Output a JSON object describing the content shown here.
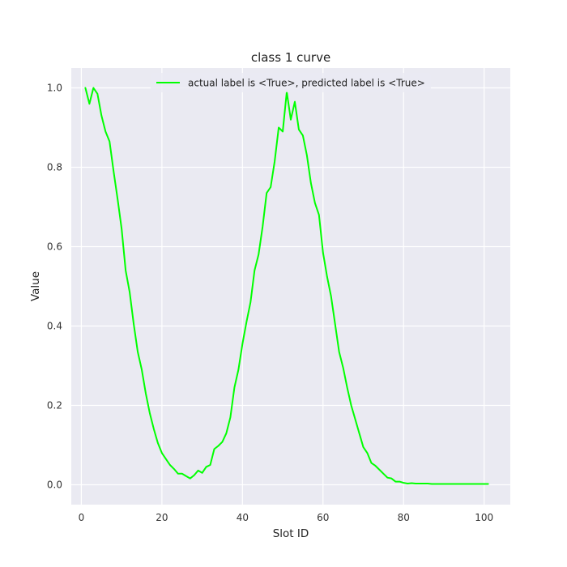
{
  "chart_data": {
    "type": "line",
    "title": "class 1 curve",
    "xlabel": "Slot ID",
    "ylabel": "Value",
    "xlim": [
      -2.5,
      106.5
    ],
    "ylim": [
      -0.05,
      1.05
    ],
    "xticks": [
      0,
      20,
      40,
      60,
      80,
      100
    ],
    "yticks": [
      0.0,
      0.2,
      0.4,
      0.6,
      0.8,
      1.0
    ],
    "xtick_labels": [
      "0",
      "20",
      "40",
      "60",
      "80",
      "100"
    ],
    "ytick_labels": [
      "0.0",
      "0.2",
      "0.4",
      "0.6",
      "0.8",
      "1.0"
    ],
    "grid": true,
    "background": "#eaeaf2",
    "legend_position": "top-center",
    "series": [
      {
        "name": "actual label is <True>, predicted label is <True>",
        "color": "#00ff00",
        "x": [
          1,
          2,
          3,
          4,
          5,
          6,
          7,
          8,
          9,
          10,
          11,
          12,
          13,
          14,
          15,
          16,
          17,
          18,
          19,
          20,
          21,
          22,
          23,
          24,
          25,
          26,
          27,
          28,
          29,
          30,
          31,
          32,
          33,
          34,
          35,
          36,
          37,
          38,
          39,
          40,
          41,
          42,
          43,
          44,
          45,
          46,
          47,
          48,
          49,
          50,
          51,
          52,
          53,
          54,
          55,
          56,
          57,
          58,
          59,
          60,
          61,
          62,
          63,
          64,
          65,
          66,
          67,
          68,
          69,
          70,
          71,
          72,
          73,
          74,
          75,
          76,
          77,
          78,
          79,
          80,
          81,
          82,
          83,
          84,
          85,
          86,
          87,
          88,
          89,
          90,
          91,
          92,
          93,
          94,
          95,
          96,
          97,
          98,
          99,
          100,
          101
        ],
        "values": [
          1.0,
          0.96,
          1.0,
          0.985,
          0.93,
          0.89,
          0.865,
          0.79,
          0.72,
          0.645,
          0.54,
          0.485,
          0.405,
          0.335,
          0.29,
          0.23,
          0.18,
          0.14,
          0.105,
          0.08,
          0.065,
          0.05,
          0.04,
          0.028,
          0.028,
          0.022,
          0.016,
          0.024,
          0.036,
          0.03,
          0.045,
          0.05,
          0.09,
          0.098,
          0.108,
          0.13,
          0.17,
          0.245,
          0.29,
          0.355,
          0.41,
          0.46,
          0.54,
          0.58,
          0.65,
          0.735,
          0.75,
          0.815,
          0.9,
          0.89,
          0.99,
          0.92,
          0.965,
          0.895,
          0.88,
          0.83,
          0.76,
          0.71,
          0.68,
          0.585,
          0.525,
          0.475,
          0.405,
          0.335,
          0.295,
          0.245,
          0.2,
          0.165,
          0.13,
          0.095,
          0.08,
          0.055,
          0.048,
          0.038,
          0.028,
          0.018,
          0.016,
          0.008,
          0.008,
          0.005,
          0.003,
          0.004,
          0.003,
          0.003,
          0.003,
          0.003,
          0.002,
          0.002,
          0.002,
          0.002,
          0.002,
          0.002,
          0.002,
          0.002,
          0.002,
          0.002,
          0.002,
          0.002,
          0.002,
          0.002,
          0.002
        ]
      }
    ]
  }
}
